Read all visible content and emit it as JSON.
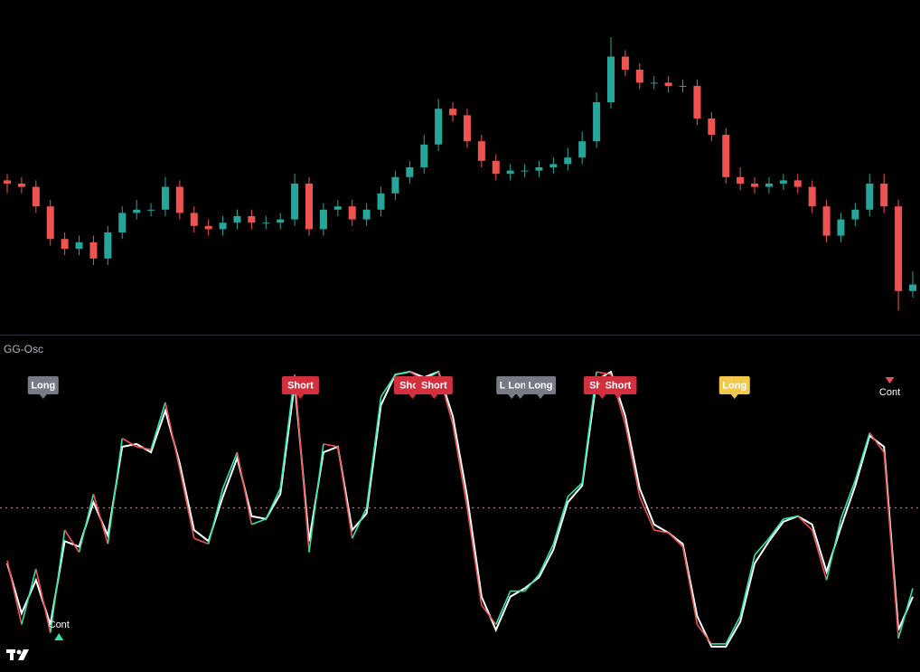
{
  "chart_data": [
    {
      "type": "candlestick",
      "up_color": "#26a69a",
      "down_color": "#ef5350",
      "ylim": [
        0,
        100
      ],
      "open": [
        46,
        45,
        44,
        38,
        28,
        25,
        27,
        22,
        30,
        36,
        37,
        37,
        44,
        36,
        32,
        31,
        33,
        35,
        33,
        33,
        34,
        45,
        31,
        37,
        38,
        34,
        37,
        42,
        47,
        50,
        57,
        68,
        66,
        58,
        52,
        48,
        49,
        49,
        50,
        51,
        53,
        58,
        70,
        84,
        80,
        76,
        76,
        75,
        75,
        65,
        60,
        47,
        45,
        44,
        45,
        46,
        44,
        38,
        29,
        34,
        37,
        45,
        38,
        12
      ],
      "high": [
        48,
        47,
        46,
        40,
        30,
        29,
        29,
        32,
        38,
        40,
        39,
        47,
        46,
        38,
        34,
        35,
        37,
        37,
        35,
        36,
        48,
        47,
        39,
        40,
        40,
        39,
        44,
        49,
        52,
        60,
        71,
        70,
        68,
        60,
        54,
        51,
        51,
        52,
        53,
        56,
        61,
        73,
        90,
        86,
        82,
        78,
        78,
        77,
        77,
        67,
        62,
        50,
        47,
        47,
        48,
        48,
        46,
        40,
        36,
        39,
        48,
        48,
        40,
        18
      ],
      "low": [
        42,
        42,
        36,
        26,
        23,
        23,
        20,
        20,
        28,
        34,
        35,
        35,
        34,
        30,
        29,
        29,
        31,
        31,
        31,
        31,
        32,
        29,
        29,
        35,
        32,
        32,
        35,
        40,
        45,
        48,
        55,
        64,
        56,
        50,
        46,
        46,
        47,
        47,
        48,
        49,
        51,
        56,
        68,
        78,
        74,
        74,
        73,
        73,
        63,
        58,
        45,
        43,
        42,
        42,
        43,
        42,
        36,
        27,
        27,
        32,
        35,
        36,
        6,
        10
      ],
      "close": [
        45,
        44,
        38,
        28,
        25,
        27,
        22,
        30,
        36,
        37,
        37,
        44,
        36,
        32,
        31,
        33,
        35,
        33,
        33,
        34,
        45,
        31,
        37,
        38,
        34,
        37,
        42,
        47,
        50,
        57,
        68,
        66,
        58,
        52,
        48,
        49,
        49,
        50,
        51,
        53,
        58,
        70,
        84,
        80,
        76,
        76,
        75,
        75,
        65,
        60,
        47,
        45,
        44,
        45,
        46,
        44,
        38,
        29,
        34,
        37,
        45,
        38,
        12,
        14
      ]
    },
    {
      "type": "line",
      "title": "GG-Osc",
      "ylim": [
        0,
        100
      ],
      "hline": 50,
      "hline_color": "#ef5350",
      "series": [
        {
          "color": "#ef5350",
          "rise_color": "#2ee6a8",
          "values": [
            31,
            8,
            28,
            5,
            42,
            34,
            55,
            37,
            75,
            72,
            71,
            88,
            64,
            39,
            37,
            57,
            70,
            44,
            46,
            57,
            98,
            34,
            73,
            72,
            39,
            50,
            90,
            98,
            99,
            96,
            99,
            80,
            50,
            15,
            8,
            20,
            20,
            26,
            37,
            54,
            59,
            99,
            98,
            80,
            54,
            42,
            41,
            36,
            8,
            1,
            1,
            11,
            33,
            39,
            46,
            47,
            42,
            24,
            46,
            60,
            77,
            70,
            3,
            21
          ]
        },
        {
          "color": "#ffffff",
          "values": [
            30,
            12,
            24,
            8,
            38,
            36,
            52,
            40,
            72,
            73,
            70,
            85,
            66,
            42,
            38,
            54,
            68,
            47,
            46,
            55,
            95,
            38,
            70,
            72,
            42,
            48,
            87,
            98,
            99,
            97,
            99,
            83,
            54,
            18,
            6,
            18,
            21,
            25,
            35,
            52,
            58,
            96,
            99,
            83,
            57,
            44,
            41,
            37,
            11,
            0,
            0,
            9,
            30,
            38,
            45,
            47,
            44,
            27,
            43,
            58,
            76,
            72,
            6,
            18
          ]
        }
      ],
      "signals": [
        {
          "label": "Long",
          "index": 2.5,
          "color": "#787b86",
          "position": "top"
        },
        {
          "label": "Short",
          "index": 20.4,
          "color": "#d32f3f",
          "position": "top"
        },
        {
          "label": "Short",
          "index": 28.2,
          "color": "#d32f3f",
          "position": "top"
        },
        {
          "label": "Short",
          "index": 29.7,
          "color": "#d32f3f",
          "position": "top"
        },
        {
          "label": "Long",
          "index": 35.1,
          "color": "#787b86",
          "position": "top"
        },
        {
          "label": "Long",
          "index": 35.7,
          "color": "#787b86",
          "position": "top"
        },
        {
          "label": "Long",
          "index": 37.1,
          "color": "#787b86",
          "position": "top"
        },
        {
          "label": "Short",
          "index": 41.4,
          "color": "#d32f3f",
          "position": "top"
        },
        {
          "label": "Short",
          "index": 42.5,
          "color": "#d32f3f",
          "position": "top"
        },
        {
          "label": "Long",
          "index": 50.6,
          "color": "#f2c94c",
          "position": "top"
        },
        {
          "label": "Cont",
          "index": 61.4,
          "color": "#ef5350",
          "position": "top-marker"
        },
        {
          "label": "Cont",
          "index": 3.6,
          "color": "#2ee6a8",
          "position": "bottom-marker"
        }
      ]
    }
  ]
}
